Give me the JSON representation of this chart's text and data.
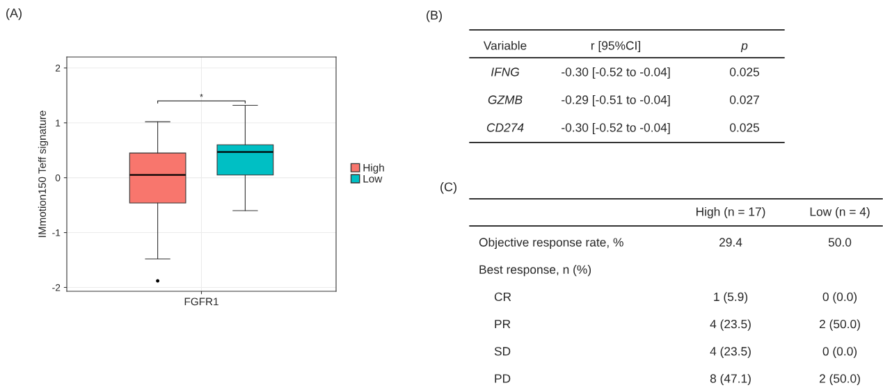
{
  "chart_data": [
    {
      "type": "box",
      "title": "(A)",
      "ylabel": "IMmotion150 Teff signature",
      "categories": [
        "FGFR1"
      ],
      "series": [
        {
          "name": "High",
          "color": "#f8766d",
          "boxes": [
            {
              "low": -1.48,
              "q1": -0.46,
              "median": 0.05,
              "q3": 0.45,
              "high": 1.02,
              "outliers": [
                -1.88
              ]
            }
          ]
        },
        {
          "name": "Low",
          "color": "#00bfc4",
          "boxes": [
            {
              "low": -0.6,
              "q1": 0.05,
              "median": 0.47,
              "q3": 0.6,
              "high": 1.32
            }
          ]
        }
      ],
      "ylim": [
        -2.07,
        2.2
      ],
      "yticks": [
        -2,
        -1,
        0,
        1,
        2
      ],
      "grid": true,
      "legend": "right",
      "annotations": [
        "*"
      ]
    },
    {
      "type": "other",
      "title": "(B)",
      "categories": [
        "Variable",
        "r [95%CI]",
        "p"
      ],
      "y_categories": [
        "IFNG",
        "GZMB",
        "CD274"
      ],
      "cell_labels": [
        [
          "-0.30 [-0.52 to -0.04]",
          "0.025"
        ],
        [
          "-0.29 [-0.51 to -0.04]",
          "0.027"
        ],
        [
          "-0.30 [-0.52 to -0.04]",
          "0.025"
        ]
      ]
    },
    {
      "type": "other",
      "title": "(C)",
      "categories": [
        null,
        "High (n = 17)",
        "Low (n = 4)"
      ],
      "y_categories": [
        "Objective response rate, %",
        "Best response, n (%)",
        "CR",
        "PR",
        "SD",
        "PD"
      ],
      "cell_labels": [
        [
          "29.4",
          "50.0"
        ],
        [
          null,
          null
        ],
        [
          "1 (5.9)",
          "0 (0.0)"
        ],
        [
          "4 (23.5)",
          "2 (50.0)"
        ],
        [
          "4 (23.5)",
          "0 (0.0)"
        ],
        [
          "8 (47.1)",
          "2 (50.0)"
        ]
      ]
    }
  ]
}
